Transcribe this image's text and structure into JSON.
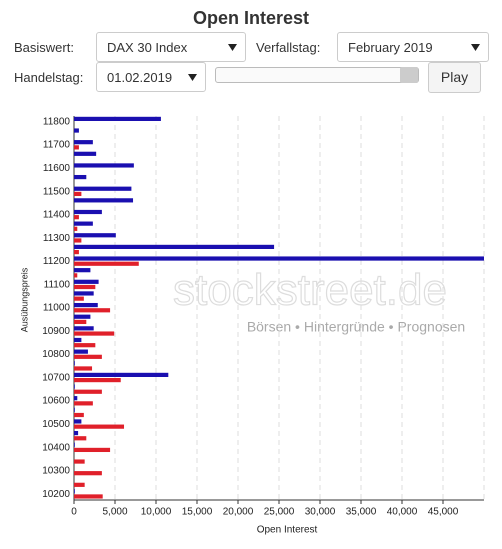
{
  "header": {
    "title": "Open Interest"
  },
  "controls": {
    "basiswert_label": "Basiswert:",
    "basiswert_value": "DAX 30 Index",
    "verfallstag_label": "Verfallstag:",
    "verfallstag_value": "February 2019",
    "handelstag_label": "Handelstag:",
    "handelstag_value": "01.02.2019",
    "play_button": "Play"
  },
  "watermark": {
    "brand": "stockstreet.de",
    "tagline": "Börsen • Hintergründe • Prognosen"
  },
  "chart_data": {
    "type": "hbar",
    "x_label": "Open Interest",
    "y_label": "Ausübungspreis",
    "categories": [
      "11800",
      null,
      "11700",
      null,
      "11600",
      null,
      "11500",
      null,
      "11400",
      null,
      "11300",
      null,
      "11200",
      null,
      "11100",
      null,
      "11000",
      null,
      "10900",
      null,
      "10800",
      null,
      "10700",
      null,
      "10600",
      null,
      "10500",
      null,
      "10400",
      null,
      "10300",
      null,
      "10200"
    ],
    "series": [
      {
        "color": "#1a0fb0",
        "values": [
          10600,
          600,
          2300,
          2700,
          7300,
          1500,
          7000,
          7200,
          3400,
          2300,
          5100,
          24400,
          50000,
          2000,
          3000,
          2400,
          2900,
          2000,
          2400,
          900,
          1700,
          100,
          11500,
          100,
          400,
          100,
          900,
          500,
          100,
          0,
          0,
          0,
          100
        ]
      },
      {
        "color": "#e0202a",
        "values": [
          0,
          0,
          600,
          0,
          0,
          0,
          900,
          0,
          600,
          400,
          900,
          600,
          7900,
          400,
          2600,
          1200,
          4400,
          1500,
          4900,
          2600,
          3400,
          2200,
          5700,
          3400,
          2300,
          1200,
          6100,
          1500,
          4400,
          1300,
          3400,
          1300,
          3500
        ]
      }
    ],
    "xlim": [
      0,
      50000
    ],
    "xticks": [
      0,
      {
        "value": 5000,
        "label": "5,000"
      },
      {
        "value": 10000,
        "label": "10,000"
      },
      {
        "value": 15000,
        "label": "15,000"
      },
      {
        "value": 20000,
        "label": "20,000"
      },
      {
        "value": 25000,
        "label": "25,000"
      },
      {
        "value": 30000,
        "label": "30,000"
      },
      {
        "value": 35000,
        "label": "35,000"
      },
      {
        "value": 40000,
        "label": "40,000"
      },
      {
        "value": 45000,
        "label": "45,000"
      }
    ],
    "grid": true
  }
}
